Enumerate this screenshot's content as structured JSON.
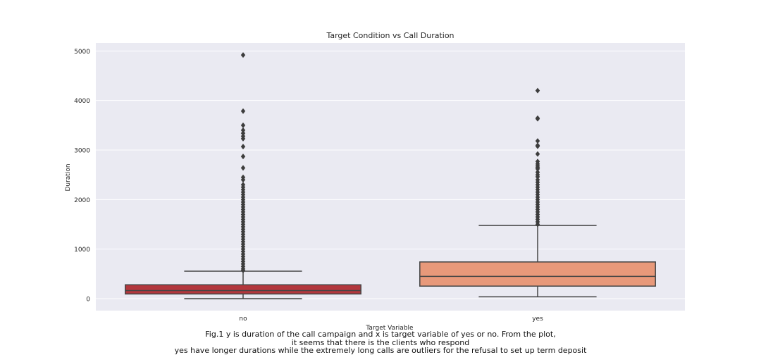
{
  "chart_data": {
    "type": "box",
    "title": "Target Condition vs Call Duration",
    "xlabel": "Target Variable",
    "ylabel": "Duration",
    "categories": [
      "no",
      "yes"
    ],
    "ylim": [
      -230,
      5200
    ],
    "yticks": [
      0,
      1000,
      2000,
      3000,
      4000,
      5000
    ],
    "grid": true,
    "boxes": [
      {
        "category": "no",
        "color": "#b3373d",
        "whisker_low": 0,
        "q1": 95,
        "median": 164,
        "q3": 280,
        "whisker_high": 555,
        "outliers": [
          4918,
          3785,
          3500,
          3400,
          3340,
          3280,
          3230,
          3070,
          2870,
          2640,
          2450,
          2400,
          2300,
          2250,
          2200,
          2150,
          2100,
          2050,
          2000,
          1950,
          1900,
          1850,
          1800,
          1750,
          1700,
          1650,
          1600,
          1550,
          1500,
          1450,
          1400,
          1350,
          1300,
          1250,
          1200,
          1150,
          1100,
          1050,
          1000,
          950,
          900,
          850,
          800,
          750,
          700,
          650,
          600,
          570
        ]
      },
      {
        "category": "yes",
        "color": "#e8997a",
        "whisker_low": 37,
        "q1": 253,
        "median": 449,
        "q3": 741,
        "whisker_high": 1477,
        "outliers": [
          4199,
          3643,
          3631,
          3183,
          3094,
          3076,
          2920,
          2769,
          2720,
          2680,
          2650,
          2620,
          2553,
          2500,
          2460,
          2400,
          2350,
          2300,
          2250,
          2200,
          2150,
          2100,
          2050,
          2000,
          1950,
          1900,
          1850,
          1800,
          1750,
          1700,
          1650,
          1600,
          1550,
          1500
        ]
      }
    ]
  },
  "caption": {
    "line1": "Fig.1 y is duration of the call campaign and x is target variable of yes or no. From the plot,",
    "line2": "it seems that there is the clients who respond",
    "line3": "yes have longer durations while the extremely long calls are outliers for the refusal to set up term deposit"
  }
}
